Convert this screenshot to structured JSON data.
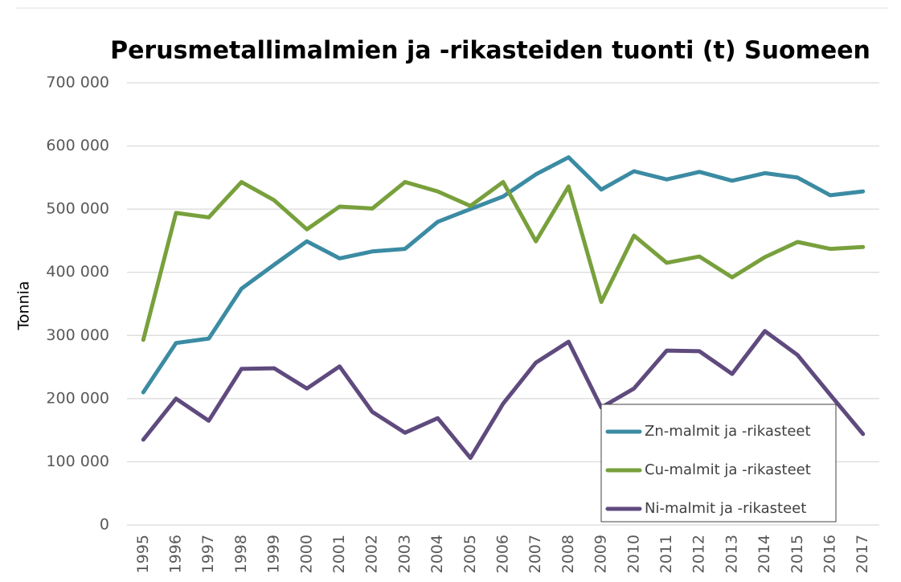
{
  "chart_data": {
    "type": "line",
    "title": "Perusmetallimalmien ja -rikasteiden tuonti (t) Suomeen",
    "y_label": "Tonnia",
    "categories": [
      "1995",
      "1996",
      "1997",
      "1998",
      "1999",
      "2000",
      "2001",
      "2002",
      "2003",
      "2004",
      "2005",
      "2006",
      "2007",
      "2008",
      "2009",
      "2010",
      "2011",
      "2012",
      "2013",
      "2014",
      "2015",
      "2016",
      "2017"
    ],
    "series": [
      {
        "name": "Zn-malmit ja -rikasteet",
        "color": "#3b8ba3",
        "values": [
          210000,
          288000,
          295000,
          374000,
          412000,
          449000,
          422000,
          433000,
          437000,
          480000,
          500000,
          520000,
          555000,
          582000,
          531000,
          560000,
          547000,
          559000,
          545000,
          557000,
          550000,
          522000,
          528000
        ]
      },
      {
        "name": "Cu-malmit ja -rikasteet",
        "color": "#78a03c",
        "values": [
          293000,
          494000,
          487000,
          543000,
          514000,
          468000,
          504000,
          501000,
          543000,
          528000,
          505000,
          543000,
          449000,
          536000,
          353000,
          458000,
          415000,
          425000,
          392000,
          424000,
          448000,
          437000,
          440000
        ]
      },
      {
        "name": "Ni-malmit ja -rikasteet",
        "color": "#5f4a7e",
        "values": [
          135000,
          200000,
          165000,
          247000,
          248000,
          216000,
          251000,
          179000,
          146000,
          169000,
          106000,
          192000,
          257000,
          290000,
          186000,
          216000,
          276000,
          275000,
          239000,
          307000,
          269000,
          206000,
          144000
        ]
      }
    ],
    "ylim": [
      0,
      700000
    ],
    "yticks": [
      0,
      {
        "value": 100000,
        "label": "100 000"
      },
      {
        "value": 200000,
        "label": "200 000"
      },
      {
        "value": 300000,
        "label": "300 000"
      },
      {
        "value": 400000,
        "label": "400 000"
      },
      {
        "value": 500000,
        "label": "500 000"
      },
      {
        "value": 600000,
        "label": "600 000"
      },
      {
        "value": 700000,
        "label": "700 000"
      }
    ],
    "grid": true,
    "legend": "lower right"
  }
}
